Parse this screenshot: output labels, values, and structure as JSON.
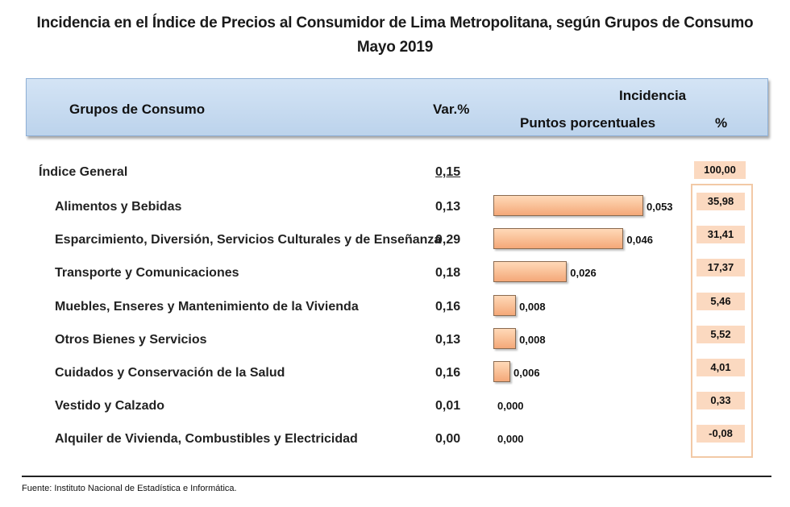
{
  "title_line1": "Incidencia en el Índice de Precios al Consumidor de  Lima Metropolitana, según Grupos de Consumo",
  "title_line2": "Mayo 2019",
  "header": {
    "groups": "Grupos de Consumo",
    "var": "Var.%",
    "incidencia": "Incidencia",
    "puntos": "Puntos porcentuales",
    "pct": "%"
  },
  "general": {
    "label": "Índice General",
    "var": "0,15",
    "pct": "100,00"
  },
  "source": "Fuente: Instituto Nacional de Estadística e Informática.",
  "colors": {
    "header_band": "#c7dbf0",
    "bar": "#f7b98c",
    "pct_box": "#fbd9c0"
  },
  "chart_data": {
    "type": "bar",
    "orientation": "horizontal",
    "title": "Incidencia en el Índice de Precios al Consumidor de  Lima Metropolitana, según Grupos de Consumo",
    "subtitle": "Mayo 2019",
    "categories": [
      "Alimentos y Bebidas",
      "Esparcimiento, Diversión, Servicios Culturales y de Enseñanza",
      "Transporte y Comunicaciones",
      "Muebles, Enseres y Mantenimiento de la Vivienda",
      "Otros  Bienes y Servicios",
      "Cuidados y Conservación de la Salud",
      "Vestido y Calzado",
      "Alquiler de Vivienda, Combustibles y Electricidad"
    ],
    "var_pct": [
      "0,13",
      "0,29",
      "0,18",
      "0,16",
      "0,13",
      "0,16",
      "0,01",
      "0,00"
    ],
    "values": [
      0.053,
      0.046,
      0.026,
      0.008,
      0.008,
      0.006,
      0.0,
      0.0
    ],
    "value_labels": [
      "0,053",
      "0,046",
      "0,026",
      "0,008",
      "0,008",
      "0,006",
      "0,000",
      "0,000"
    ],
    "pct_labels": [
      "35,98",
      "31,41",
      "17,37",
      "5,46",
      "5,52",
      "4,01",
      "0,33",
      "-0,08"
    ],
    "xlim": [
      0,
      0.053
    ],
    "grid": false,
    "legend": "none"
  }
}
